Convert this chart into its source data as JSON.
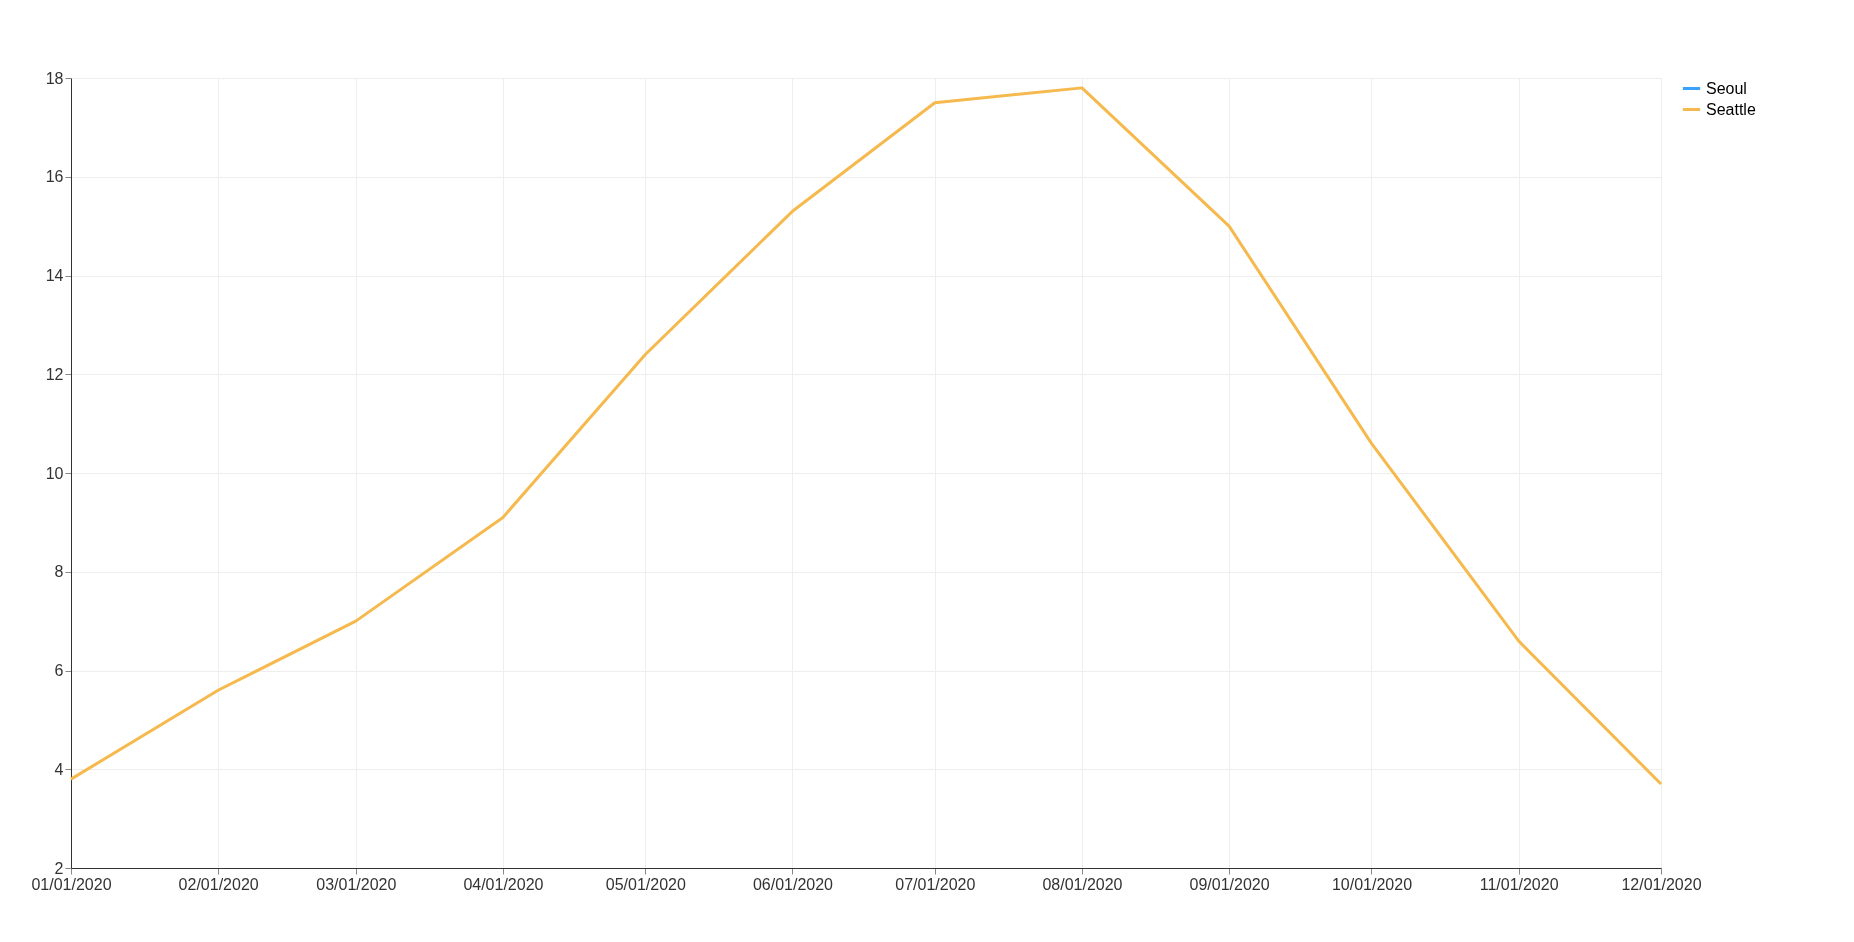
{
  "chart_data": {
    "type": "line",
    "x": [
      "2020-01-01",
      "2020-02-01",
      "2020-03-01",
      "2020-04-01",
      "2020-05-01",
      "2020-06-01",
      "2020-07-01",
      "2020-08-01",
      "2020-09-01",
      "2020-10-01",
      "2020-11-01",
      "2020-12-01"
    ],
    "series": [
      {
        "name": "Seoul",
        "color": "#3ba1ff",
        "values": [
          null,
          null,
          null,
          null,
          null,
          null,
          null,
          null,
          null,
          null,
          null,
          null
        ]
      },
      {
        "name": "Seattle",
        "color": "#f5b94d",
        "values": [
          3.8,
          5.6,
          7.0,
          9.1,
          12.4,
          15.3,
          17.5,
          17.8,
          15.0,
          10.6,
          6.6,
          3.7
        ]
      }
    ],
    "xlim": [
      "2020-01-01",
      "2020-12-01"
    ],
    "xticks": [
      {
        "value": "2020-01-01",
        "label": "01/01/2020"
      },
      {
        "value": "2020-02-01",
        "label": "02/01/2020"
      },
      {
        "value": "2020-03-01",
        "label": "03/01/2020"
      },
      {
        "value": "2020-04-01",
        "label": "04/01/2020"
      },
      {
        "value": "2020-05-01",
        "label": "05/01/2020"
      },
      {
        "value": "2020-06-01",
        "label": "06/01/2020"
      },
      {
        "value": "2020-07-01",
        "label": "07/01/2020"
      },
      {
        "value": "2020-08-01",
        "label": "08/01/2020"
      },
      {
        "value": "2020-09-01",
        "label": "09/01/2020"
      },
      {
        "value": "2020-10-01",
        "label": "10/01/2020"
      },
      {
        "value": "2020-11-01",
        "label": "11/01/2020"
      },
      {
        "value": "2020-12-01",
        "label": "12/01/2020"
      }
    ],
    "ylim": [
      2,
      18
    ],
    "yticks": [
      2,
      4,
      6,
      8,
      10,
      12,
      14,
      16,
      18
    ],
    "grid": true,
    "legend": "top right",
    "marker": "none",
    "line_style": "solid"
  }
}
